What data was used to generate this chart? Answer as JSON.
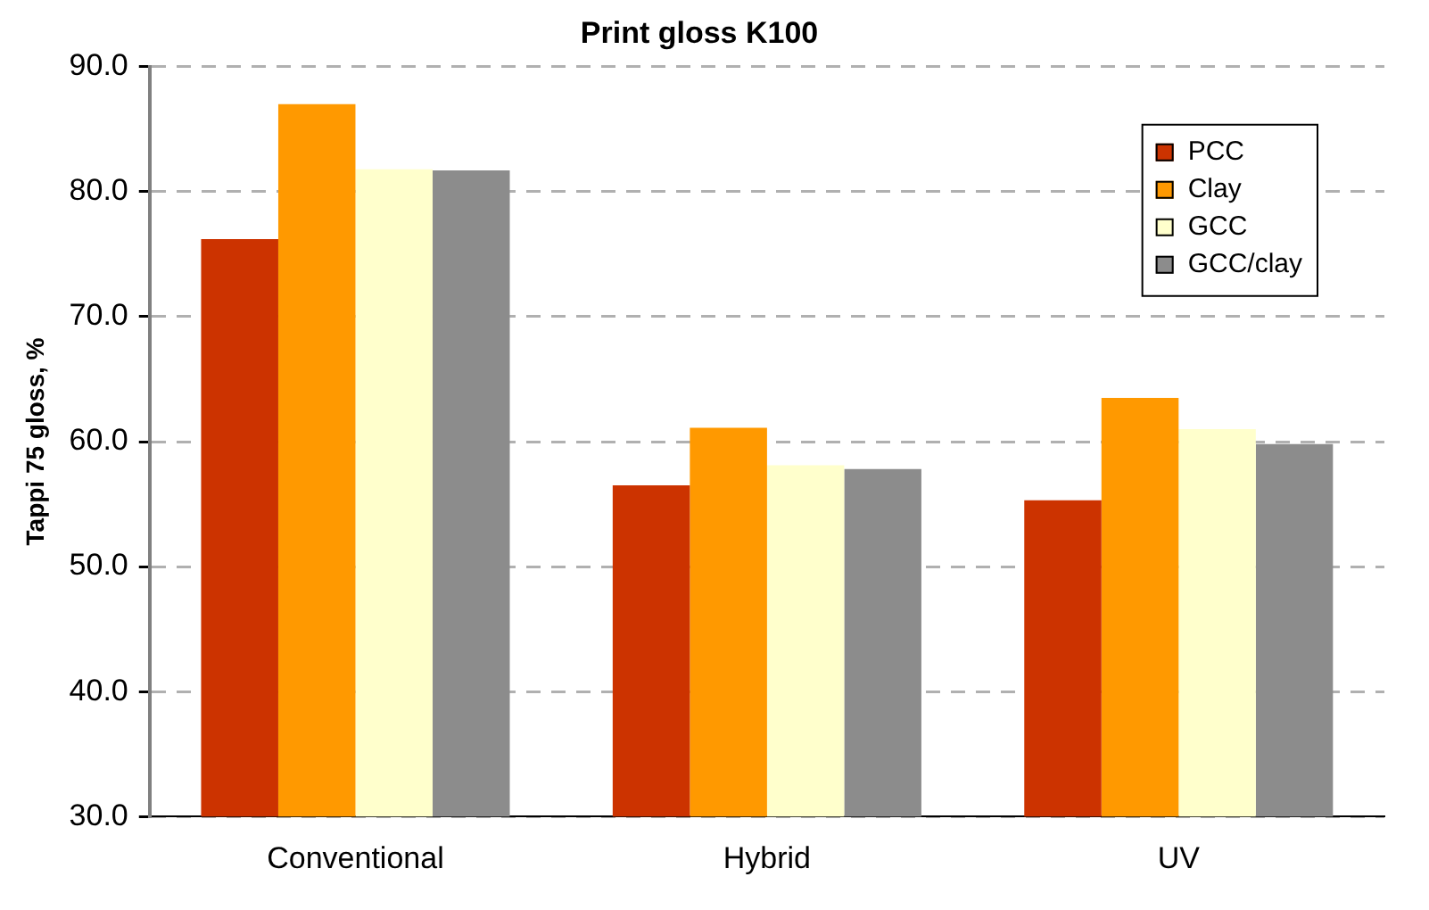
{
  "chart_data": {
    "type": "bar",
    "title": "Print gloss K100",
    "ylabel": "Tappi 75 gloss, %",
    "categories": [
      "Conventional",
      "Hybrid",
      "UV"
    ],
    "series": [
      {
        "name": "PCC",
        "color": "#cc3300",
        "values": [
          76.2,
          56.5,
          55.3
        ]
      },
      {
        "name": "Clay",
        "color": "#ff9900",
        "values": [
          87.0,
          61.1,
          63.5
        ]
      },
      {
        "name": "GCC",
        "color": "#ffffcc",
        "values": [
          81.8,
          58.1,
          61.0
        ]
      },
      {
        "name": "GCC/clay",
        "color": "#8c8c8c",
        "values": [
          81.7,
          57.8,
          59.8
        ]
      }
    ],
    "ylim": [
      30,
      90
    ],
    "yticks": [
      {
        "value": 30,
        "label": "30.0"
      },
      {
        "value": 40,
        "label": "40.0"
      },
      {
        "value": 50,
        "label": "50.0"
      },
      {
        "value": 60,
        "label": "60.0"
      },
      {
        "value": 70,
        "label": "70.0"
      },
      {
        "value": 80,
        "label": "80.0"
      },
      {
        "value": 90,
        "label": "90.0"
      }
    ],
    "grid": "y",
    "legend": "top right"
  }
}
